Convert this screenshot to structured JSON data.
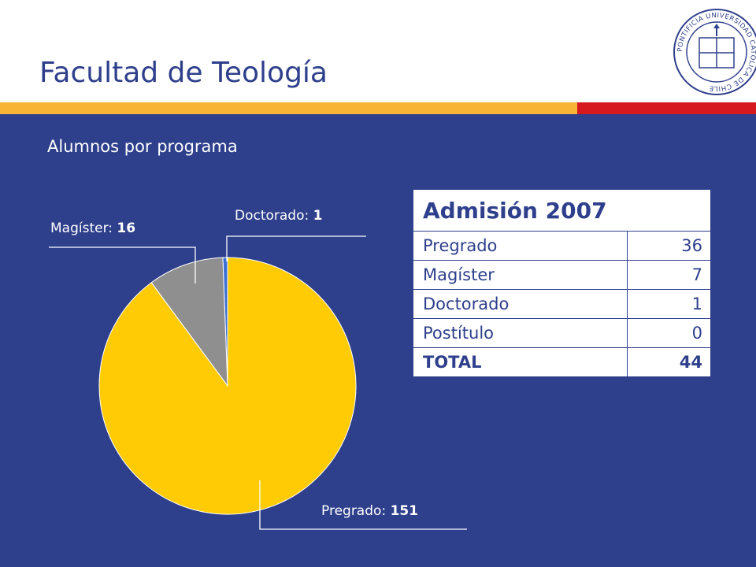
{
  "title": "Facultad de Teología",
  "subtitle": "Alumnos por programa",
  "colors": {
    "background": "#2e3f8c",
    "accent_yellow": "#f8b535",
    "accent_red": "#d6181f"
  },
  "seal": {
    "ring_text": "PONTIFICIA UNIVERSIDAD CATOLICA DE CHILE"
  },
  "chart_data": {
    "type": "pie",
    "categories": [
      "Pregrado",
      "Magíster",
      "Doctorado"
    ],
    "values": [
      151,
      16,
      1
    ],
    "colors": [
      "#ffcb05",
      "#8f8f8f",
      "#3b6fd6"
    ],
    "labels": [
      {
        "name": "Pregrado",
        "value": "151"
      },
      {
        "name": "Magíster",
        "value": "16"
      },
      {
        "name": "Doctorado",
        "value": "1"
      }
    ]
  },
  "admission_table": {
    "header": "Admisión 2007",
    "rows": [
      {
        "program": "Pregrado",
        "count": "36"
      },
      {
        "program": "Magíster",
        "count": "7"
      },
      {
        "program": "Doctorado",
        "count": "1"
      },
      {
        "program": "Postítulo",
        "count": "0"
      }
    ],
    "total": {
      "program": "TOTAL",
      "count": "44"
    }
  }
}
